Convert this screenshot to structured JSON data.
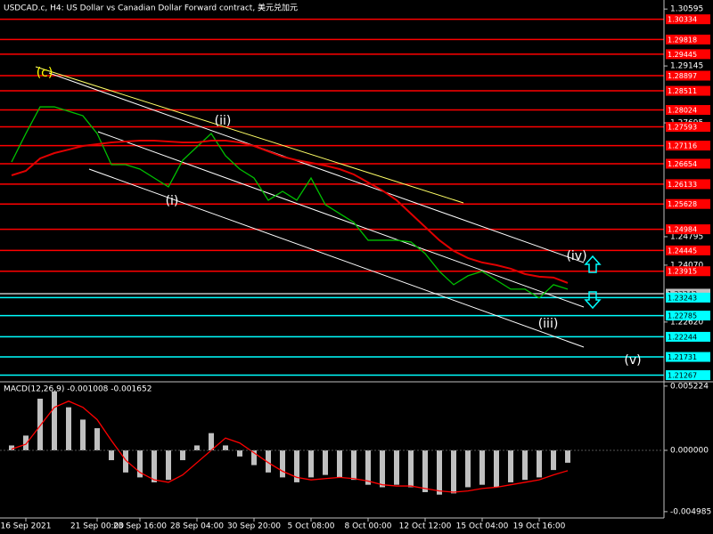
{
  "chart_data": [
    {
      "type": "line",
      "title": "USDCAD.c, H4:  US Dollar vs Canadian Dollar Forward contract, 美元兑加元",
      "categories": [
        null,
        "16 Sep 2021",
        null,
        null,
        null,
        null,
        "21 Sep 00:00",
        null,
        null,
        "23 Sep 16:00",
        null,
        null,
        null,
        "28 Sep 04:00",
        null,
        null,
        null,
        "30 Sep 20:00",
        null,
        null,
        null,
        "5 Oct 08:00",
        null,
        null,
        null,
        "8 Oct 00:00",
        null,
        null,
        null,
        "12 Oct 12:00",
        null,
        null,
        null,
        "15 Oct 04:00",
        null,
        null,
        null,
        "19 Oct 16:00",
        null,
        null
      ],
      "series": [
        {
          "color": "#00c000",
          "values": [
            1.26698,
            1.27423,
            1.28103,
            1.28103,
            1.2799,
            1.27876,
            1.27423,
            1.2663,
            1.2663,
            1.26517,
            1.2629,
            1.26064,
            1.26743,
            1.27083,
            1.27423,
            1.26857,
            1.26517,
            1.2629,
            1.25724,
            1.25951,
            1.25724,
            1.2629,
            1.25611,
            1.25384,
            1.25158,
            1.24704,
            1.24704,
            1.24704,
            1.24659,
            1.24365,
            1.23911,
            1.23572,
            1.23798,
            1.23911,
            1.23685,
            1.23458,
            1.23458,
            1.23232,
            1.23572,
            1.23458
          ]
        },
        {
          "color": "#e00000",
          "values": [
            1.26358,
            1.26472,
            1.26789,
            1.26925,
            1.27015,
            1.27106,
            1.27151,
            1.27197,
            1.27219,
            1.27242,
            1.27242,
            1.27219,
            1.27197,
            1.27197,
            1.27242,
            1.27242,
            1.27197,
            1.27106,
            1.2697,
            1.26834,
            1.26743,
            1.26676,
            1.26608,
            1.26517,
            1.26381,
            1.26177,
            1.25973,
            1.25724,
            1.25384,
            1.25044,
            1.24704,
            1.24433,
            1.24251,
            1.24138,
            1.2407,
            1.23979,
            1.23844,
            1.23776,
            1.23754,
            1.23617
          ]
        }
      ],
      "ylim": [
        1.2112,
        1.3078
      ],
      "yticks": [
        1.30595,
        1.29145,
        1.27695,
        1.24795,
        {
          "value": 1.2407,
          "label": "1.24070"
        },
        {
          "value": 1.2262,
          "label": "1.22620"
        }
      ],
      "levels": [
        {
          "value": 1.30334,
          "color": "#ff0000"
        },
        {
          "value": 1.29818,
          "color": "#ff0000"
        },
        {
          "value": 1.29445,
          "color": "#ff0000"
        },
        {
          "value": 1.28897,
          "color": "#ff0000"
        },
        {
          "value": 1.28511,
          "color": "#ff0000"
        },
        {
          "value": 1.28024,
          "color": "#ff0000"
        },
        {
          "value": 1.27593,
          "color": "#ff0000"
        },
        {
          "value": 1.27116,
          "color": "#ff0000"
        },
        {
          "value": 1.26654,
          "color": "#ff0000"
        },
        {
          "value": 1.26133,
          "color": "#ff0000"
        },
        {
          "value": 1.25628,
          "color": "#ff0000"
        },
        {
          "value": 1.24984,
          "color": "#ff0000"
        },
        {
          "value": 1.24445,
          "color": "#ff0000"
        },
        {
          "value": 1.23915,
          "color": "#ff0000"
        },
        {
          "value": 1.23343,
          "color": "#c0c0c0"
        },
        {
          "value": 1.23243,
          "color": "#00ffff"
        },
        {
          "value": 1.22785,
          "color": "#00ffff"
        },
        {
          "value": 1.22244,
          "color": "#00ffff"
        },
        {
          "value": 1.21731,
          "color": "#00ffff"
        },
        {
          "value": 1.21267,
          "color": "#00ffff"
        }
      ],
      "annotations": [
        "(c)",
        "(ii)",
        "(i)",
        "(iii)",
        "(iv)",
        "(v)"
      ]
    },
    {
      "type": "bar",
      "title": "MACD(12,26,9) -0.001008 -0.001652",
      "series": [
        {
          "color": "#c0c0c0",
          "values": [
            0.0004,
            0.0012,
            0.0042,
            0.0048,
            0.0035,
            0.0025,
            0.0018,
            -0.0008,
            -0.0018,
            -0.0022,
            -0.0026,
            -0.0024,
            -0.0008,
            0.0004,
            0.0014,
            0.0004,
            -0.0005,
            -0.0012,
            -0.0018,
            -0.0022,
            -0.0026,
            -0.0022,
            -0.002,
            -0.0022,
            -0.0024,
            -0.0028,
            -0.003,
            -0.0028,
            -0.003,
            -0.0034,
            -0.0036,
            -0.0035,
            -0.003,
            -0.0028,
            -0.003,
            -0.0026,
            -0.0024,
            -0.0022,
            -0.0016,
            -0.001008
          ]
        },
        {
          "type": "line",
          "color": "#ff0000",
          "values": [
            0.0001,
            0.0005,
            0.002,
            0.0035,
            0.004,
            0.0035,
            0.0025,
            0.0008,
            -0.0008,
            -0.0018,
            -0.0024,
            -0.0026,
            -0.002,
            -0.001,
            0,
            0.001,
            0.0006,
            -0.0002,
            -0.001,
            -0.0017,
            -0.0022,
            -0.0024,
            -0.0023,
            -0.0022,
            -0.0023,
            -0.0025,
            -0.0028,
            -0.0029,
            -0.0029,
            -0.0031,
            -0.0033,
            -0.0034,
            -0.0033,
            -0.0031,
            -0.003,
            -0.0028,
            -0.0026,
            -0.0024,
            -0.002,
            -0.001652
          ]
        }
      ],
      "ylim": [
        -0.0055,
        0.0055
      ],
      "yticks": [
        0.005224,
        {
          "value": 0,
          "label": "0.000000"
        },
        -0.004985
      ]
    }
  ]
}
